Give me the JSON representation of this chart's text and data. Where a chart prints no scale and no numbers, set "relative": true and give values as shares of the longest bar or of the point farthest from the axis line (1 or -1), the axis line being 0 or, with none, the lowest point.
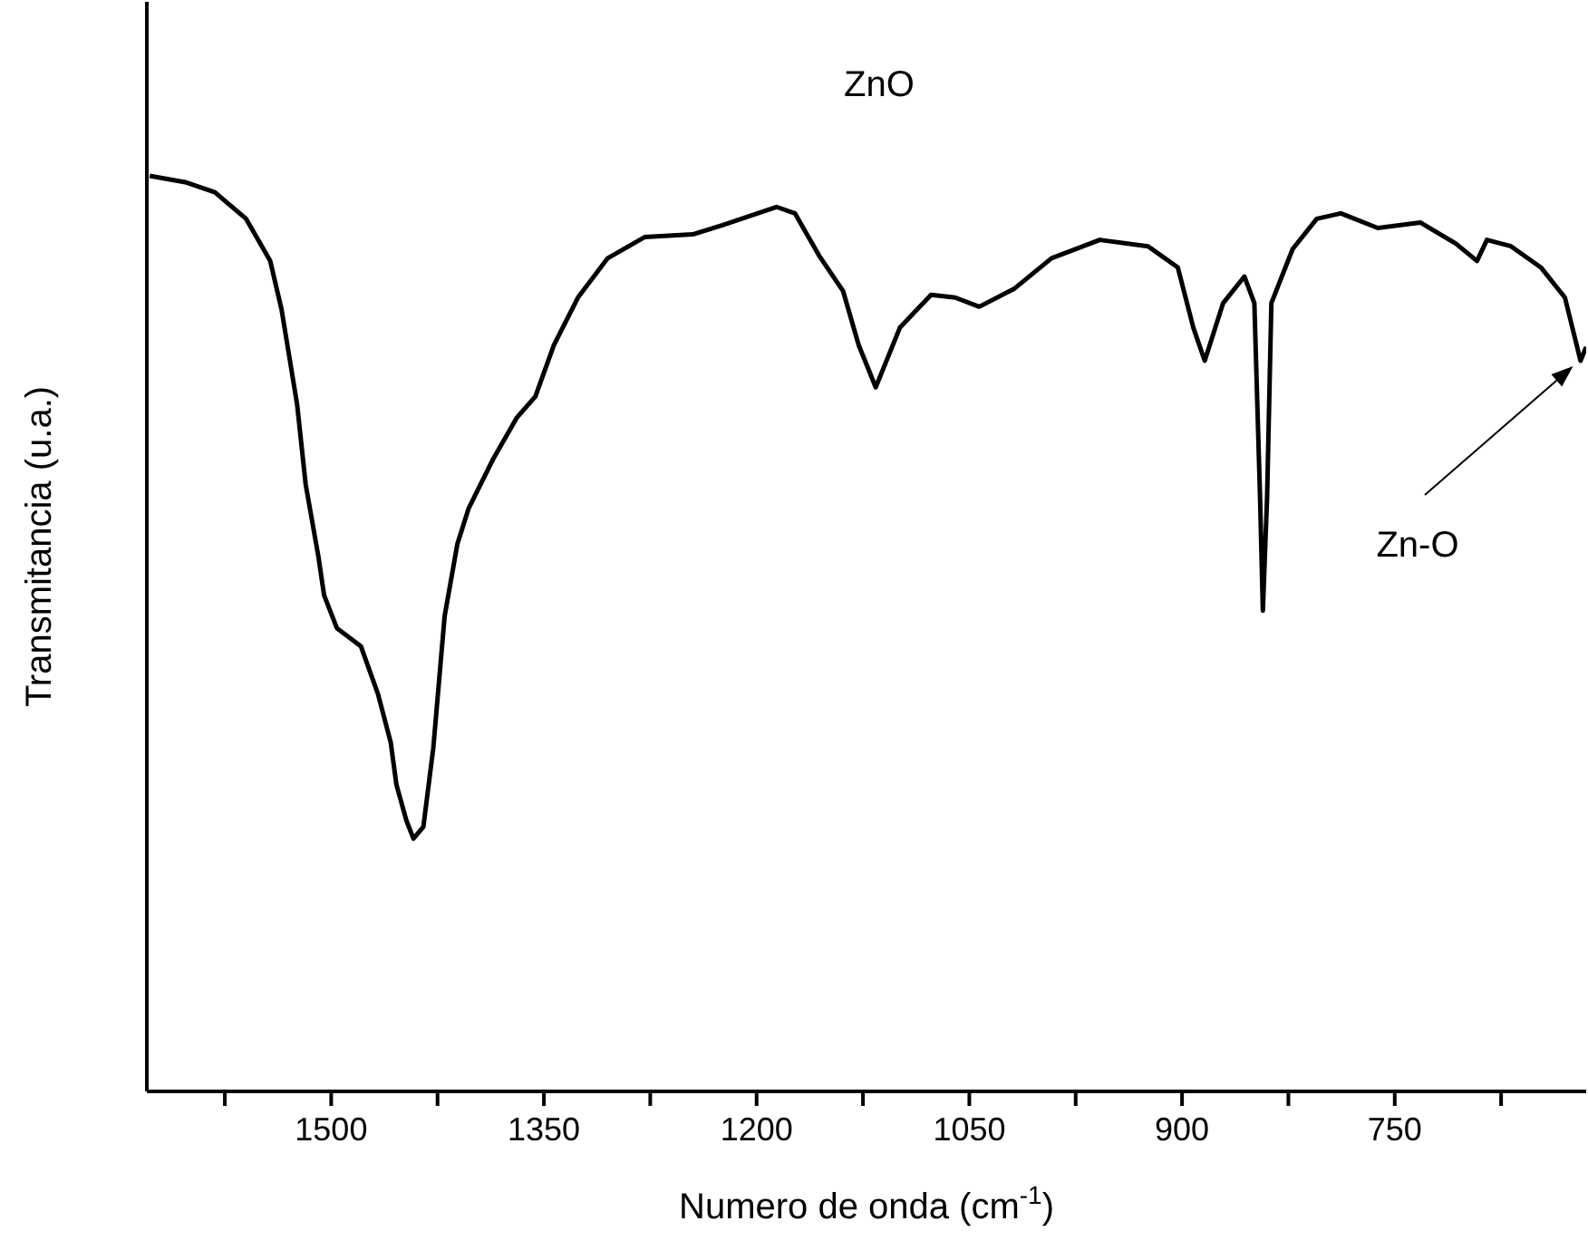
{
  "chart_data": {
    "type": "line",
    "title": "ZnO",
    "xlabel": "Numero de onda (cm$^{-1}$)",
    "ylabel": "Transmitancia (u.a.)",
    "relative": true,
    "xlim": [
      1630,
      615
    ],
    "xticks": [
      {
        "value": 1575,
        "label": null
      },
      1500,
      {
        "value": 1425,
        "label": null
      },
      1350,
      {
        "value": 1275,
        "label": null
      },
      1200,
      {
        "value": 1125,
        "label": null
      },
      1050,
      {
        "value": 975,
        "label": null
      },
      900,
      {
        "value": 825,
        "label": null
      },
      750,
      {
        "value": 675,
        "label": null
      }
    ],
    "x": [
      1628,
      1603,
      1582,
      1560,
      1543,
      1535,
      1524,
      1518,
      1509,
      1505,
      1496,
      1479,
      1467,
      1458,
      1454,
      1447,
      1442,
      1435,
      1428,
      1420,
      1411,
      1403,
      1386,
      1369,
      1356,
      1343,
      1326,
      1305,
      1279,
      1245,
      1224,
      1186,
      1173,
      1156,
      1139,
      1128,
      1116,
      1099,
      1077,
      1060,
      1043,
      1018,
      992,
      958,
      924,
      903,
      892,
      884,
      871,
      856,
      849,
      845,
      843,
      840,
      837,
      822,
      805,
      788,
      762,
      732,
      707,
      692,
      685,
      668,
      647,
      630,
      619,
      615
    ],
    "series": [
      {
        "color": "#000000",
        "values": [
          1.0,
          0.993,
          0.982,
          0.953,
          0.907,
          0.854,
          0.75,
          0.663,
          0.584,
          0.542,
          0.506,
          0.486,
          0.434,
          0.381,
          0.335,
          0.296,
          0.276,
          0.289,
          0.375,
          0.519,
          0.598,
          0.637,
          0.69,
          0.736,
          0.759,
          0.815,
          0.867,
          0.91,
          0.933,
          0.936,
          0.946,
          0.966,
          0.959,
          0.913,
          0.874,
          0.815,
          0.769,
          0.834,
          0.87,
          0.867,
          0.857,
          0.877,
          0.91,
          0.93,
          0.923,
          0.9,
          0.834,
          0.798,
          0.861,
          0.89,
          0.861,
          0.65,
          0.525,
          0.65,
          0.861,
          0.92,
          0.953,
          0.959,
          0.943,
          0.949,
          0.926,
          0.907,
          0.93,
          0.923,
          0.9,
          0.867,
          0.798,
          0.813
        ]
      }
    ],
    "annotations": [
      "Zn-O"
    ],
    "grid": false,
    "legend": false,
    "marker": "none",
    "line_style": "solid"
  }
}
